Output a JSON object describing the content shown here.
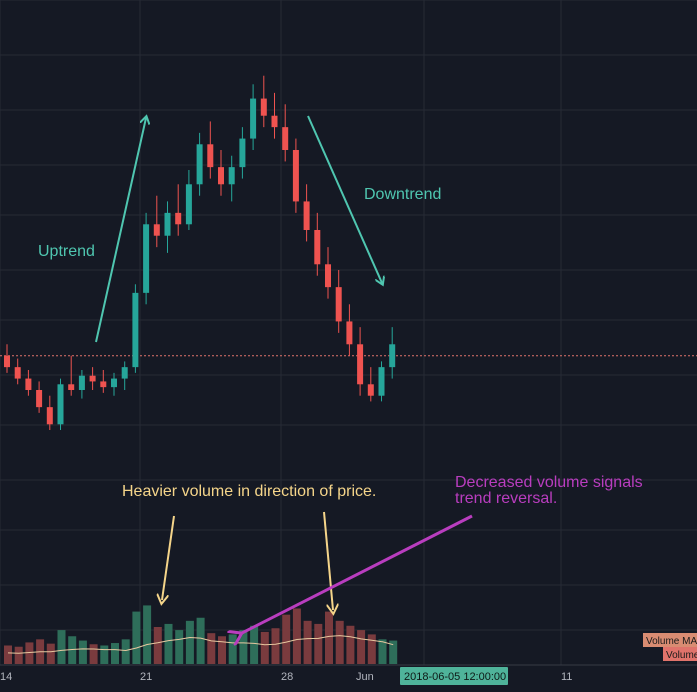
{
  "colors": {
    "background": "#151924",
    "grid": "#262a35",
    "bull": "#26a69a",
    "bear": "#ef5350",
    "bull_vol": "#2e6e5a",
    "bear_vol": "#7a3b3e",
    "price_line": "#e0736b",
    "volume_ma": "#e8c9a0",
    "uptrend": "#4fc6b0",
    "downtrend": "#4fc6b0",
    "volume_note": "#f5d58a",
    "reversal_note": "#b93dbf",
    "crosshair_label_bg": "#4fb39a",
    "ma_tag_bg": "#d98c72",
    "vol_tag_bg": "#e0736b"
  },
  "annotations": {
    "uptrend": "Uptrend",
    "downtrend": "Downtrend",
    "volume_note": "Heavier volume in direction of price.",
    "reversal_note_line1": "Decreased volume signals",
    "reversal_note_line2": "trend reversal."
  },
  "axis": {
    "ticks": [
      "14",
      "21",
      "28",
      "Jun",
      "11"
    ],
    "crosshair_label": "2018-06-05 12:00:00"
  },
  "legend_tags": {
    "volume_ma": "Volume MA",
    "volume": "Volume"
  },
  "chart_data": {
    "type": "candlestick",
    "x_ticks": [
      "14",
      "21",
      "28",
      "Jun",
      "11"
    ],
    "price_series": [
      {
        "open": 100,
        "high": 104,
        "low": 94,
        "close": 96
      },
      {
        "open": 96,
        "high": 99,
        "low": 90,
        "close": 92
      },
      {
        "open": 92,
        "high": 95,
        "low": 86,
        "close": 88
      },
      {
        "open": 88,
        "high": 91,
        "low": 80,
        "close": 82
      },
      {
        "open": 82,
        "high": 86,
        "low": 74,
        "close": 76
      },
      {
        "open": 76,
        "high": 92,
        "low": 74,
        "close": 90
      },
      {
        "open": 90,
        "high": 100,
        "low": 86,
        "close": 88
      },
      {
        "open": 88,
        "high": 95,
        "low": 85,
        "close": 93
      },
      {
        "open": 93,
        "high": 96,
        "low": 88,
        "close": 91
      },
      {
        "open": 91,
        "high": 95,
        "low": 87,
        "close": 89
      },
      {
        "open": 89,
        "high": 94,
        "low": 86,
        "close": 92
      },
      {
        "open": 92,
        "high": 98,
        "low": 88,
        "close": 96
      },
      {
        "open": 96,
        "high": 125,
        "low": 94,
        "close": 122
      },
      {
        "open": 122,
        "high": 150,
        "low": 118,
        "close": 146
      },
      {
        "open": 146,
        "high": 156,
        "low": 138,
        "close": 142
      },
      {
        "open": 142,
        "high": 154,
        "low": 136,
        "close": 150
      },
      {
        "open": 150,
        "high": 160,
        "low": 142,
        "close": 146
      },
      {
        "open": 146,
        "high": 165,
        "low": 144,
        "close": 160
      },
      {
        "open": 160,
        "high": 178,
        "low": 156,
        "close": 174
      },
      {
        "open": 174,
        "high": 182,
        "low": 162,
        "close": 166
      },
      {
        "open": 166,
        "high": 172,
        "low": 156,
        "close": 160
      },
      {
        "open": 160,
        "high": 170,
        "low": 154,
        "close": 166
      },
      {
        "open": 166,
        "high": 180,
        "low": 162,
        "close": 176
      },
      {
        "open": 176,
        "high": 195,
        "low": 172,
        "close": 190
      },
      {
        "open": 190,
        "high": 198,
        "low": 180,
        "close": 184
      },
      {
        "open": 184,
        "high": 192,
        "low": 176,
        "close": 180
      },
      {
        "open": 180,
        "high": 188,
        "low": 168,
        "close": 172
      },
      {
        "open": 172,
        "high": 176,
        "low": 150,
        "close": 154
      },
      {
        "open": 154,
        "high": 160,
        "low": 140,
        "close": 144
      },
      {
        "open": 144,
        "high": 150,
        "low": 128,
        "close": 132
      },
      {
        "open": 132,
        "high": 138,
        "low": 120,
        "close": 124
      },
      {
        "open": 124,
        "high": 130,
        "low": 108,
        "close": 112
      },
      {
        "open": 112,
        "high": 118,
        "low": 100,
        "close": 104
      },
      {
        "open": 104,
        "high": 110,
        "low": 86,
        "close": 90
      },
      {
        "open": 90,
        "high": 96,
        "low": 84,
        "close": 86
      },
      {
        "open": 86,
        "high": 98,
        "low": 84,
        "close": 96
      },
      {
        "open": 96,
        "high": 110,
        "low": 92,
        "close": 104
      }
    ],
    "volume_series": [
      {
        "value": 30,
        "up": false
      },
      {
        "value": 28,
        "up": false
      },
      {
        "value": 35,
        "up": false
      },
      {
        "value": 40,
        "up": false
      },
      {
        "value": 33,
        "up": false
      },
      {
        "value": 55,
        "up": true
      },
      {
        "value": 45,
        "up": true
      },
      {
        "value": 38,
        "up": true
      },
      {
        "value": 32,
        "up": false
      },
      {
        "value": 30,
        "up": true
      },
      {
        "value": 34,
        "up": true
      },
      {
        "value": 40,
        "up": true
      },
      {
        "value": 85,
        "up": true
      },
      {
        "value": 95,
        "up": true
      },
      {
        "value": 60,
        "up": false
      },
      {
        "value": 65,
        "up": true
      },
      {
        "value": 55,
        "up": true
      },
      {
        "value": 70,
        "up": true
      },
      {
        "value": 75,
        "up": true
      },
      {
        "value": 50,
        "up": false
      },
      {
        "value": 45,
        "up": false
      },
      {
        "value": 48,
        "up": true
      },
      {
        "value": 55,
        "up": true
      },
      {
        "value": 62,
        "up": true
      },
      {
        "value": 52,
        "up": false
      },
      {
        "value": 58,
        "up": false
      },
      {
        "value": 80,
        "up": false
      },
      {
        "value": 90,
        "up": false
      },
      {
        "value": 70,
        "up": false
      },
      {
        "value": 65,
        "up": false
      },
      {
        "value": 85,
        "up": false
      },
      {
        "value": 70,
        "up": false
      },
      {
        "value": 62,
        "up": false
      },
      {
        "value": 55,
        "up": false
      },
      {
        "value": 48,
        "up": false
      },
      {
        "value": 40,
        "up": true
      },
      {
        "value": 38,
        "up": true
      }
    ],
    "reference_price": 100,
    "price_range": [
      60,
      200
    ],
    "volume_range": [
      0,
      120
    ],
    "grid": true
  }
}
